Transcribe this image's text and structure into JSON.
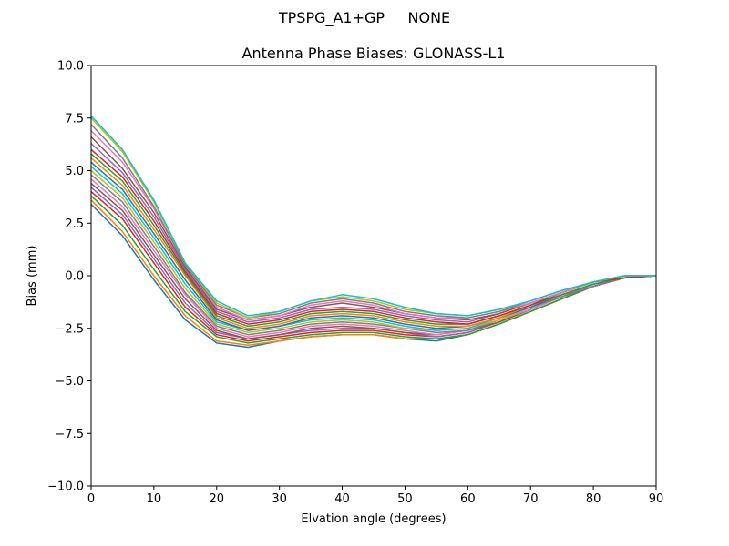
{
  "figure": {
    "suptitle_antenna": "TPSPG_A1+GP",
    "suptitle_radome": "NONE"
  },
  "chart_data": {
    "type": "line",
    "title": "Antenna Phase Biases: GLONASS-L1",
    "xlabel": "Elvation angle (degrees)",
    "ylabel": "Bias (mm)",
    "xlim": [
      0,
      90
    ],
    "ylim": [
      -10,
      10
    ],
    "x_ticks": [
      "0",
      "10",
      "20",
      "30",
      "40",
      "50",
      "60",
      "70",
      "80",
      "90"
    ],
    "y_ticks": [
      "−10.0",
      "−7.5",
      "−5.0",
      "−2.5",
      "0.0",
      "2.5",
      "5.0",
      "7.5",
      "10.0"
    ],
    "grid": false,
    "legend": "none",
    "x": [
      0,
      5,
      10,
      15,
      20,
      25,
      30,
      35,
      40,
      45,
      50,
      55,
      60,
      65,
      70,
      75,
      80,
      85,
      90
    ],
    "colors": [
      "#1f77b4",
      "#ff7f0e",
      "#2ca02c",
      "#d62728",
      "#9467bd",
      "#8c564b",
      "#e377c2",
      "#7f7f7f",
      "#bcbd22",
      "#17becf"
    ],
    "series": [
      {
        "values": [
          3.4,
          1.9,
          -0.2,
          -2.1,
          -3.2,
          -3.4,
          -3.1,
          -2.9,
          -2.8,
          -2.8,
          -3.0,
          -3.1,
          -2.8,
          -2.3,
          -1.7,
          -1.1,
          -0.5,
          -0.1,
          0.0
        ]
      },
      {
        "values": [
          3.6,
          2.1,
          0.0,
          -1.9,
          -3.1,
          -3.3,
          -3.1,
          -2.9,
          -2.8,
          -2.8,
          -3.0,
          -3.0,
          -2.8,
          -2.3,
          -1.7,
          -1.1,
          -0.5,
          -0.1,
          0.0
        ]
      },
      {
        "values": [
          3.8,
          2.4,
          0.3,
          -1.7,
          -2.9,
          -3.2,
          -3.0,
          -2.8,
          -2.7,
          -2.7,
          -2.9,
          -3.0,
          -2.8,
          -2.3,
          -1.7,
          -1.1,
          -0.5,
          -0.1,
          0.0
        ]
      },
      {
        "values": [
          4.0,
          2.7,
          0.6,
          -1.5,
          -2.8,
          -3.1,
          -2.9,
          -2.7,
          -2.6,
          -2.6,
          -2.8,
          -2.9,
          -2.7,
          -2.2,
          -1.6,
          -1.0,
          -0.5,
          -0.1,
          0.0
        ]
      },
      {
        "values": [
          4.2,
          2.9,
          0.8,
          -1.3,
          -2.7,
          -3.0,
          -2.8,
          -2.6,
          -2.5,
          -2.5,
          -2.7,
          -2.9,
          -2.7,
          -2.2,
          -1.6,
          -1.0,
          -0.5,
          -0.1,
          0.0
        ]
      },
      {
        "values": [
          4.4,
          3.1,
          1.0,
          -1.1,
          -2.6,
          -3.0,
          -2.8,
          -2.5,
          -2.4,
          -2.5,
          -2.7,
          -2.8,
          -2.6,
          -2.2,
          -1.6,
          -1.0,
          -0.4,
          -0.1,
          0.0
        ]
      },
      {
        "values": [
          4.6,
          3.3,
          1.2,
          -0.9,
          -2.5,
          -2.9,
          -2.7,
          -2.4,
          -2.3,
          -2.4,
          -2.6,
          -2.8,
          -2.6,
          -2.1,
          -1.6,
          -1.0,
          -0.4,
          -0.1,
          0.0
        ]
      },
      {
        "values": [
          4.8,
          3.5,
          1.4,
          -0.8,
          -2.4,
          -2.8,
          -2.6,
          -2.3,
          -2.2,
          -2.3,
          -2.5,
          -2.7,
          -2.6,
          -2.1,
          -1.5,
          -1.0,
          -0.4,
          -0.1,
          0.0
        ]
      },
      {
        "values": [
          5.0,
          3.7,
          1.6,
          -0.6,
          -2.3,
          -2.7,
          -2.5,
          -2.2,
          -2.1,
          -2.2,
          -2.5,
          -2.6,
          -2.5,
          -2.1,
          -1.5,
          -0.9,
          -0.4,
          -0.1,
          0.0
        ]
      },
      {
        "values": [
          5.2,
          3.9,
          1.8,
          -0.4,
          -2.2,
          -2.6,
          -2.4,
          -2.1,
          -2.0,
          -2.1,
          -2.4,
          -2.6,
          -2.5,
          -2.0,
          -1.5,
          -0.9,
          -0.4,
          -0.1,
          0.0
        ]
      },
      {
        "values": [
          5.4,
          4.1,
          2.0,
          -0.2,
          -2.1,
          -2.6,
          -2.4,
          -2.0,
          -1.9,
          -2.0,
          -2.3,
          -2.5,
          -2.4,
          -2.0,
          -1.5,
          -0.9,
          -0.4,
          -0.1,
          0.0
        ]
      },
      {
        "values": [
          5.6,
          4.3,
          2.2,
          0.0,
          -2.0,
          -2.5,
          -2.3,
          -1.9,
          -1.8,
          -1.9,
          -2.2,
          -2.4,
          -2.4,
          -2.0,
          -1.4,
          -0.9,
          -0.4,
          -0.1,
          0.0
        ]
      },
      {
        "values": [
          5.8,
          4.5,
          2.4,
          0.1,
          -1.9,
          -2.4,
          -2.2,
          -1.8,
          -1.7,
          -1.8,
          -2.1,
          -2.3,
          -2.3,
          -1.9,
          -1.4,
          -0.9,
          -0.4,
          -0.1,
          0.0
        ]
      },
      {
        "values": [
          6.0,
          4.7,
          2.6,
          0.2,
          -1.8,
          -2.3,
          -2.1,
          -1.7,
          -1.6,
          -1.7,
          -2.0,
          -2.2,
          -2.3,
          -1.9,
          -1.4,
          -0.8,
          -0.3,
          -0.1,
          0.0
        ]
      },
      {
        "values": [
          6.3,
          4.9,
          2.8,
          0.3,
          -1.7,
          -2.2,
          -2.0,
          -1.6,
          -1.5,
          -1.6,
          -1.9,
          -2.1,
          -2.2,
          -1.8,
          -1.3,
          -0.8,
          -0.3,
          0.0,
          0.0
        ]
      },
      {
        "values": [
          6.6,
          5.1,
          3.0,
          0.4,
          -1.6,
          -2.1,
          -1.9,
          -1.5,
          -1.3,
          -1.5,
          -1.8,
          -2.0,
          -2.1,
          -1.8,
          -1.3,
          -0.8,
          -0.3,
          0.0,
          0.0
        ]
      },
      {
        "values": [
          6.9,
          5.4,
          3.2,
          0.5,
          -1.5,
          -2.1,
          -1.9,
          -1.4,
          -1.2,
          -1.4,
          -1.8,
          -2.0,
          -2.0,
          -1.7,
          -1.3,
          -0.8,
          -0.3,
          0.0,
          0.0
        ]
      },
      {
        "values": [
          7.2,
          5.6,
          3.3,
          0.5,
          -1.4,
          -2.0,
          -1.8,
          -1.3,
          -1.1,
          -1.3,
          -1.7,
          -1.9,
          -2.0,
          -1.7,
          -1.2,
          -0.7,
          -0.3,
          0.0,
          0.0
        ]
      },
      {
        "values": [
          7.5,
          5.9,
          3.5,
          0.6,
          -1.3,
          -2.0,
          -1.7,
          -1.2,
          -1.0,
          -1.2,
          -1.6,
          -1.8,
          -1.9,
          -1.6,
          -1.2,
          -0.7,
          -0.3,
          0.0,
          0.0
        ]
      },
      {
        "values": [
          7.6,
          6.0,
          3.6,
          0.6,
          -1.2,
          -1.9,
          -1.7,
          -1.2,
          -0.9,
          -1.1,
          -1.5,
          -1.8,
          -1.9,
          -1.6,
          -1.2,
          -0.7,
          -0.3,
          0.0,
          0.0
        ]
      }
    ]
  }
}
